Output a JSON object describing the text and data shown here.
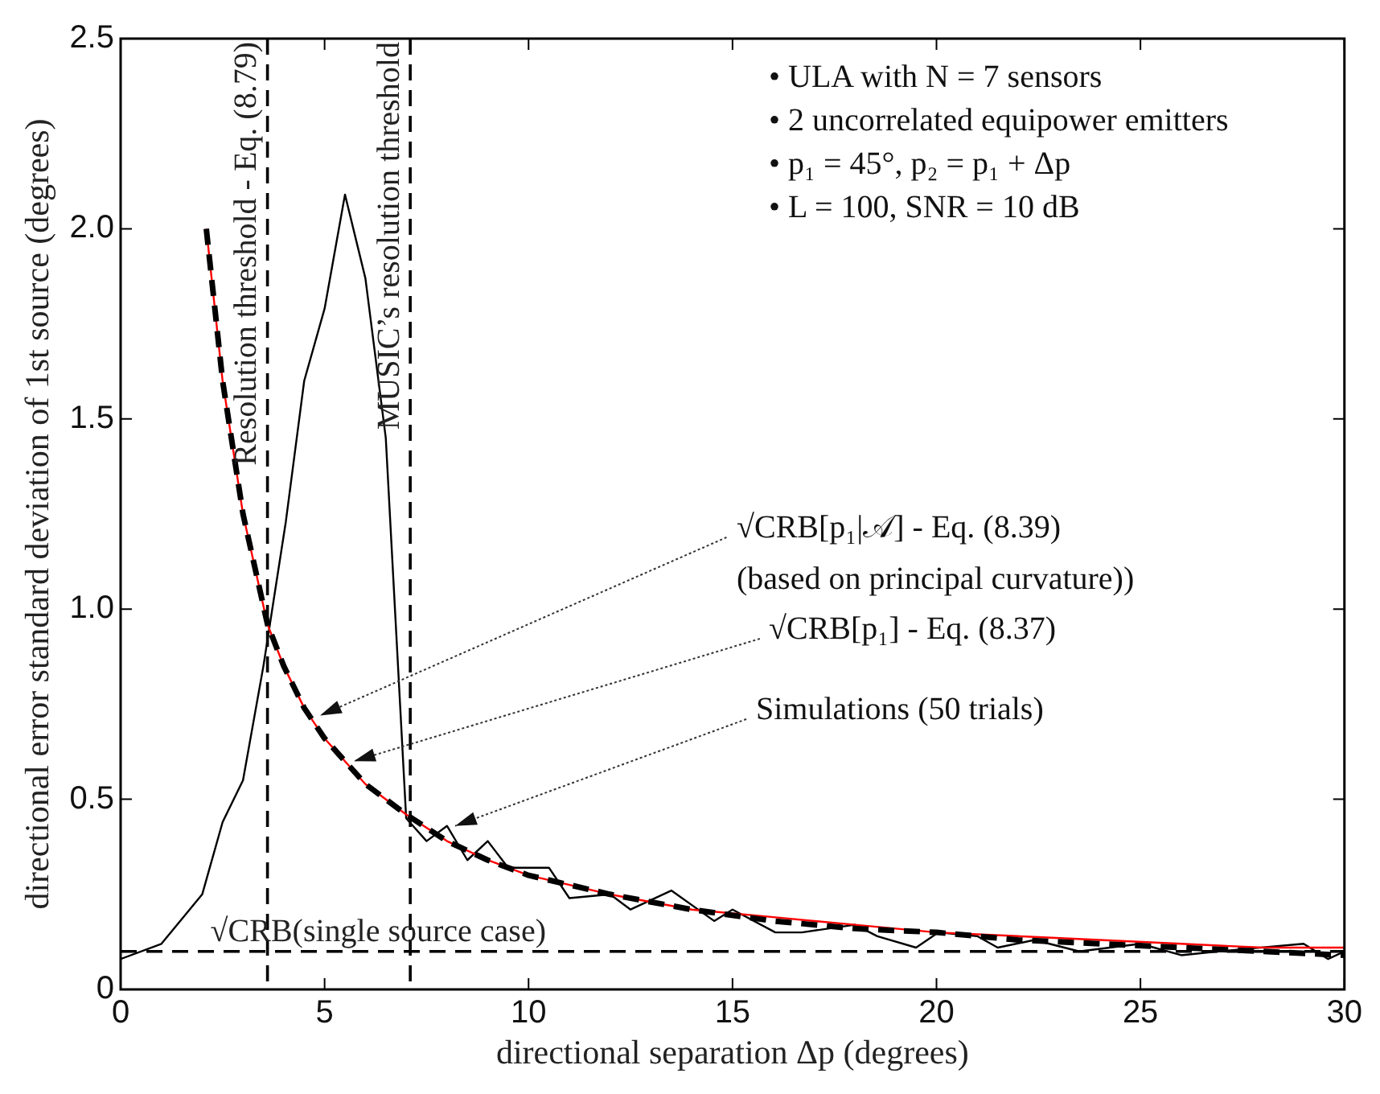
{
  "chart_data": {
    "type": "line",
    "xlabel": "directional separation Δp (degrees)",
    "ylabel": "directional error standard deviation of 1st source (degrees)",
    "xlim": [
      0,
      30
    ],
    "xticks": [
      0,
      5,
      10,
      15,
      20,
      25,
      30
    ],
    "ylim": [
      0,
      2.5
    ],
    "yticks": [
      0,
      {
        "value": 0.5,
        "label": "0.5"
      },
      {
        "value": 1,
        "label": "1.0"
      },
      {
        "value": 1.5,
        "label": "1.5"
      },
      {
        "value": 2,
        "label": "2.0"
      },
      {
        "value": 2.5,
        "label": "2.5"
      }
    ],
    "grid": false,
    "legend": false,
    "marker": "none",
    "series": [
      {
        "color": "#000000",
        "line_style": "solid",
        "x": [
          0,
          1,
          2,
          2.5,
          3,
          3.5,
          4.05,
          4.5,
          5,
          5.5,
          6,
          6.5,
          7,
          7.5,
          8,
          8.5,
          9,
          9.5,
          10.5,
          11,
          12,
          12.5,
          13.5,
          14.55,
          15,
          16.05,
          16.7,
          18,
          18.55,
          19.5,
          20.05,
          21,
          21.5,
          22.4,
          23.5,
          25,
          26,
          26.9,
          29,
          29.6,
          30
        ],
        "values": [
          0.08,
          0.12,
          0.25,
          0.44,
          0.55,
          0.85,
          1.23,
          1.6,
          1.79,
          2.09,
          1.87,
          1.45,
          0.45,
          0.39,
          0.43,
          0.34,
          0.39,
          0.32,
          0.32,
          0.24,
          0.25,
          0.21,
          0.26,
          0.18,
          0.21,
          0.15,
          0.15,
          0.17,
          0.14,
          0.11,
          0.15,
          0.14,
          0.11,
          0.13,
          0.1,
          0.12,
          0.09,
          0.1,
          0.12,
          0.08,
          0.1
        ]
      },
      {
        "color": "#ff0000",
        "line_style": "solid",
        "x": [
          2.1,
          2.5,
          3,
          3.6,
          4,
          4.5,
          5,
          6,
          7,
          8,
          9,
          10,
          12,
          14,
          16,
          18,
          20,
          22,
          24,
          26,
          28,
          30
        ],
        "values": [
          2.0,
          1.6,
          1.25,
          0.96,
          0.85,
          0.74,
          0.66,
          0.54,
          0.46,
          0.39,
          0.34,
          0.3,
          0.25,
          0.21,
          0.19,
          0.17,
          0.15,
          0.14,
          0.13,
          0.12,
          0.11,
          0.11
        ]
      },
      {
        "color": "#000000",
        "line_style": "dashed",
        "x": [
          2.1,
          2.5,
          3,
          3.6,
          4,
          4.5,
          5,
          6,
          7,
          8,
          9,
          10,
          12,
          14,
          16,
          18,
          20,
          22,
          24,
          26,
          28,
          30
        ],
        "values": [
          2.0,
          1.6,
          1.25,
          0.96,
          0.85,
          0.74,
          0.66,
          0.54,
          0.46,
          0.39,
          0.34,
          0.3,
          0.25,
          0.21,
          0.18,
          0.16,
          0.15,
          0.13,
          0.12,
          0.11,
          0.1,
          0.09
        ]
      }
    ],
    "ref_lines": [
      {
        "axis": "x",
        "value": 3.6,
        "label": "Resolution threshold - Eq. (8.79)",
        "line_style": "dashed",
        "color": "#000000"
      },
      {
        "axis": "x",
        "value": 7.1,
        "label": "MUSIC’s resolution threshold",
        "line_style": "dashed",
        "color": "#000000"
      },
      {
        "axis": "y",
        "value": 0.1,
        "label": "√CRB(single source case)",
        "line_style": "dashed",
        "color": "#000000"
      }
    ],
    "annotations": [
      {
        "text": "√CRB[p₁|𝒜] - Eq. (8.39)",
        "x": 4.9,
        "y": 0.72
      },
      "(based on principal curvature))",
      {
        "text": "√CRB[p₁] - Eq. (8.37)",
        "x": 5.7,
        "y": 0.6
      },
      {
        "text": "Simulations (50 trials)",
        "x": 8.2,
        "y": 0.43
      },
      "• ULA with N = 7 sensors",
      "• 2 uncorrelated equipower emitters",
      "• p₁ = 45°, p₂ = p₁ + Δp",
      "• L = 100, SNR = 10 dB"
    ]
  }
}
